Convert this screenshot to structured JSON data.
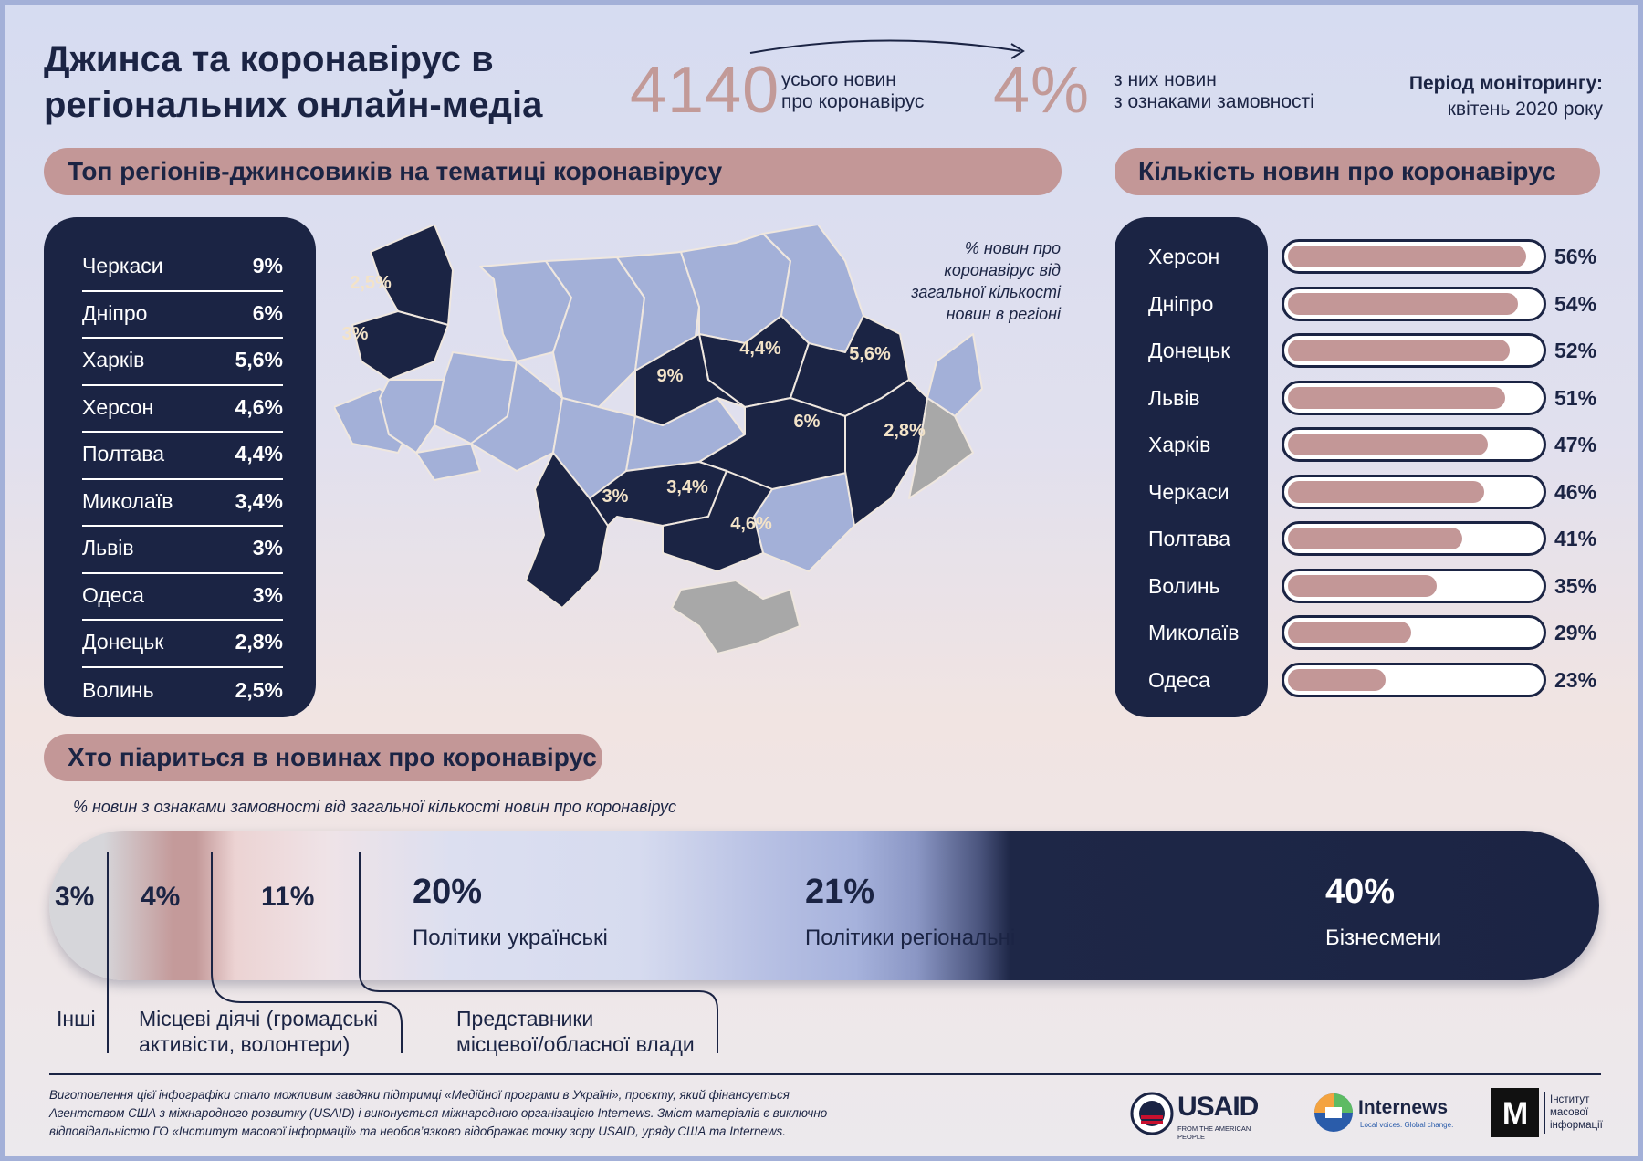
{
  "header": {
    "title_line1": "Джинса та коронавірус в",
    "title_line2": "регіональних онлайн-медіа",
    "total_count": "4140",
    "total_caption_line1": "усього новин",
    "total_caption_line2": "про коронавірус",
    "share": "4%",
    "share_caption_line1": "з них новин",
    "share_caption_line2": "з ознаками замовності",
    "period_label": "Період моніторингу:",
    "period_value": "квітень 2020 року"
  },
  "top_regions": {
    "title": "Топ регіонів-джинсовиків на тематиці коронавірусу",
    "items": [
      {
        "name": "Черкаси",
        "value": "9%"
      },
      {
        "name": "Дніпро",
        "value": "6%"
      },
      {
        "name": "Харків",
        "value": "5,6%"
      },
      {
        "name": "Херсон",
        "value": "4,6%"
      },
      {
        "name": "Полтава",
        "value": "4,4%"
      },
      {
        "name": "Миколаїв",
        "value": "3,4%"
      },
      {
        "name": "Львів",
        "value": "3%"
      },
      {
        "name": "Одеса",
        "value": "3%"
      },
      {
        "name": "Донецьк",
        "value": "2,8%"
      },
      {
        "name": "Волинь",
        "value": "2,5%"
      }
    ]
  },
  "map": {
    "legend_line1": "% новин про",
    "legend_line2": "коронавірус від",
    "legend_line3": "загальної кількості",
    "legend_line4": "новин в регіоні",
    "labels": [
      {
        "region": "Волинь",
        "value": "2,5%"
      },
      {
        "region": "Львів",
        "value": "3%"
      },
      {
        "region": "Полтава",
        "value": "4,4%"
      },
      {
        "region": "Харків",
        "value": "5,6%"
      },
      {
        "region": "Черкаси",
        "value": "9%"
      },
      {
        "region": "Дніпро",
        "value": "6%"
      },
      {
        "region": "Донецьк",
        "value": "2,8%"
      },
      {
        "region": "Одеса",
        "value": "3%"
      },
      {
        "region": "Миколаїв",
        "value": "3,4%"
      },
      {
        "region": "Херсон",
        "value": "4,6%"
      }
    ],
    "colors": {
      "highlight": "#1b2444",
      "other": "#a3b0d8",
      "occupied": "#a8a8a8"
    }
  },
  "news_count": {
    "title": "Кількість новин про коронавірус",
    "items": [
      {
        "name": "Херсон",
        "label": "56%",
        "value": 56
      },
      {
        "name": "Дніпро",
        "label": "54%",
        "value": 54
      },
      {
        "name": "Донецьк",
        "label": "52%",
        "value": 52
      },
      {
        "name": "Львів",
        "label": "51%",
        "value": 51
      },
      {
        "name": "Харків",
        "label": "47%",
        "value": 47
      },
      {
        "name": "Черкаси",
        "label": "46%",
        "value": 46
      },
      {
        "name": "Полтава",
        "label": "41%",
        "value": 41
      },
      {
        "name": "Волинь",
        "label": "35%",
        "value": 35
      },
      {
        "name": "Миколаїв",
        "label": "29%",
        "value": 29
      },
      {
        "name": "Одеса",
        "label": "23%",
        "value": 23
      }
    ]
  },
  "pr": {
    "title": "Хто піариться в новинах про коронавірус",
    "note": "% новин з ознаками замовності від загальної кількості новин про коронавірус",
    "v_other": "3%",
    "v_local": "4%",
    "v_gov": "11%",
    "v_ukr": "20%",
    "l_ukr": "Політики українські",
    "v_reg": "21%",
    "l_reg": "Політики регіональні",
    "v_biz": "40%",
    "l_biz": "Бізнесмени",
    "c_other": "Інші",
    "c_local_1": "Місцеві діячі (громадські",
    "c_local_2": "активісти, волонтери)",
    "c_gov_1": "Представники",
    "c_gov_2": "місцевої/обласної влади"
  },
  "footer": {
    "line1": "Виготовлення цієї інфографіки стало можливим завдяки підтримці «Медійної програми в Україні», проєкту, який фінансується",
    "line2": "Агентством США з міжнародного розвитку (USAID) і виконується міжнародною організацією Internews. Зміст матеріалів є виключно",
    "line3": "відповідальністю ГО «Інститут масової інформації» та необов’язково відображає точку зору USAID, уряду США та Internews.",
    "usaid": "USAID",
    "usaid_sub": "FROM THE AMERICAN PEOPLE",
    "internews": "Internews",
    "internews_sub": "Local voices. Global change.",
    "imi_letter": "М",
    "imi_1": "Інститут",
    "imi_2": "масової",
    "imi_3": "інформації"
  }
}
